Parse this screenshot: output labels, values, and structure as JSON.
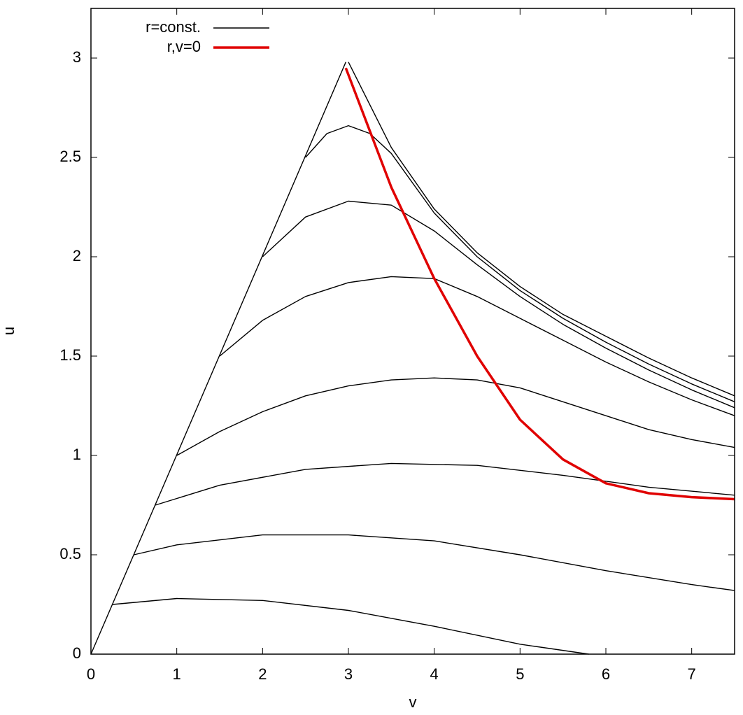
{
  "chart_data": {
    "type": "line",
    "xlabel": "v",
    "ylabel": "u",
    "xlim": [
      0,
      7.5
    ],
    "ylim": [
      0,
      3.25
    ],
    "xticks": [
      0,
      1,
      2,
      3,
      4,
      5,
      6,
      7
    ],
    "yticks": [
      0,
      0.5,
      1,
      1.5,
      2,
      2.5,
      3
    ],
    "grid": false,
    "legend": "upper left",
    "series": [
      {
        "name": "r=const.",
        "color": "#000000",
        "x": [
          0,
          2.97,
          null,
          3,
          3.5,
          4,
          4.5,
          5,
          5.5,
          6,
          6.5,
          7,
          7.5,
          null,
          2.5,
          2.75,
          3,
          3.25,
          3.5,
          4,
          4.5,
          5,
          5.5,
          6,
          6.5,
          7,
          7.5,
          null,
          2,
          2.5,
          3,
          3.5,
          4,
          4.5,
          5,
          5.5,
          6,
          6.5,
          7,
          7.5,
          null,
          1.5,
          2,
          2.5,
          3,
          3.5,
          4,
          4.5,
          5,
          5.5,
          6,
          6.5,
          7,
          7.5,
          null,
          1,
          1.5,
          2,
          2.5,
          3,
          3.5,
          4,
          4.5,
          5,
          5.5,
          6,
          6.5,
          7,
          7.5,
          null,
          0.75,
          1.5,
          2.5,
          3.5,
          4.5,
          5.5,
          6.5,
          7.5,
          null,
          0.5,
          1,
          2,
          3,
          4,
          5,
          6,
          7,
          7.5,
          null,
          0.25,
          1,
          2,
          3,
          4,
          5,
          5.8
        ],
        "values": [
          0,
          2.98,
          null,
          2.98,
          2.55,
          2.24,
          2.02,
          1.85,
          1.71,
          1.6,
          1.49,
          1.39,
          1.3,
          null,
          2.5,
          2.62,
          2.66,
          2.62,
          2.52,
          2.22,
          2.0,
          1.83,
          1.69,
          1.57,
          1.46,
          1.36,
          1.27,
          null,
          2,
          2.2,
          2.28,
          2.26,
          2.13,
          1.96,
          1.8,
          1.66,
          1.54,
          1.43,
          1.33,
          1.24,
          null,
          1.5,
          1.68,
          1.8,
          1.87,
          1.9,
          1.89,
          1.8,
          1.69,
          1.58,
          1.47,
          1.37,
          1.28,
          1.2,
          null,
          1,
          1.12,
          1.22,
          1.3,
          1.35,
          1.38,
          1.39,
          1.38,
          1.34,
          1.27,
          1.2,
          1.13,
          1.08,
          1.04,
          null,
          0.75,
          0.85,
          0.93,
          0.96,
          0.95,
          0.9,
          0.84,
          0.8,
          null,
          0.5,
          0.55,
          0.6,
          0.6,
          0.57,
          0.5,
          0.42,
          0.35,
          0.32,
          null,
          0.25,
          0.28,
          0.27,
          0.22,
          0.14,
          0.05,
          0
        ]
      },
      {
        "name": "r,v=0",
        "color": "#e00000",
        "x": [
          2.97,
          3.5,
          4,
          4.5,
          5,
          5.5,
          6,
          6.5,
          7,
          7.5
        ],
        "values": [
          2.95,
          2.35,
          1.89,
          1.5,
          1.18,
          0.98,
          0.86,
          0.81,
          0.79,
          0.78
        ]
      }
    ]
  }
}
